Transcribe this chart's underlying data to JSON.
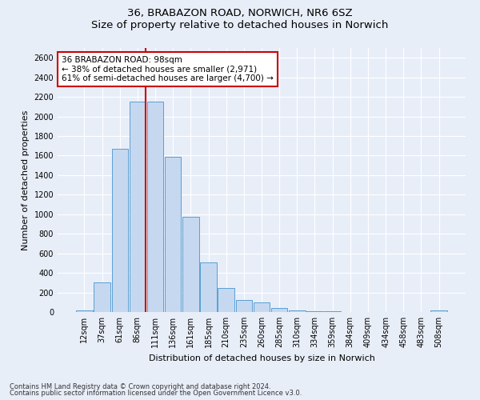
{
  "title1": "36, BRABAZON ROAD, NORWICH, NR6 6SZ",
  "title2": "Size of property relative to detached houses in Norwich",
  "xlabel": "Distribution of detached houses by size in Norwich",
  "ylabel": "Number of detached properties",
  "categories": [
    "12sqm",
    "37sqm",
    "61sqm",
    "86sqm",
    "111sqm",
    "136sqm",
    "161sqm",
    "185sqm",
    "210sqm",
    "235sqm",
    "260sqm",
    "285sqm",
    "310sqm",
    "334sqm",
    "359sqm",
    "384sqm",
    "409sqm",
    "434sqm",
    "458sqm",
    "483sqm",
    "508sqm"
  ],
  "values": [
    20,
    300,
    1670,
    2150,
    2150,
    1590,
    970,
    505,
    245,
    120,
    100,
    40,
    15,
    5,
    5,
    2,
    2,
    2,
    0,
    0,
    20
  ],
  "bar_color": "#c5d8f0",
  "bar_edge_color": "#5a9fd4",
  "marker_index": 3,
  "marker_color": "#cc0000",
  "annotation_text": "36 BRABAZON ROAD: 98sqm\n← 38% of detached houses are smaller (2,971)\n61% of semi-detached houses are larger (4,700) →",
  "annotation_box_color": "white",
  "annotation_box_edge_color": "#cc0000",
  "ylim": [
    0,
    2700
  ],
  "yticks": [
    0,
    200,
    400,
    600,
    800,
    1000,
    1200,
    1400,
    1600,
    1800,
    2000,
    2200,
    2400,
    2600
  ],
  "footer1": "Contains HM Land Registry data © Crown copyright and database right 2024.",
  "footer2": "Contains public sector information licensed under the Open Government Licence v3.0.",
  "bg_color": "#e8eef8",
  "grid_color": "white",
  "title_fontsize": 9.5,
  "axis_label_fontsize": 8,
  "tick_fontsize": 7,
  "annotation_fontsize": 7.5
}
